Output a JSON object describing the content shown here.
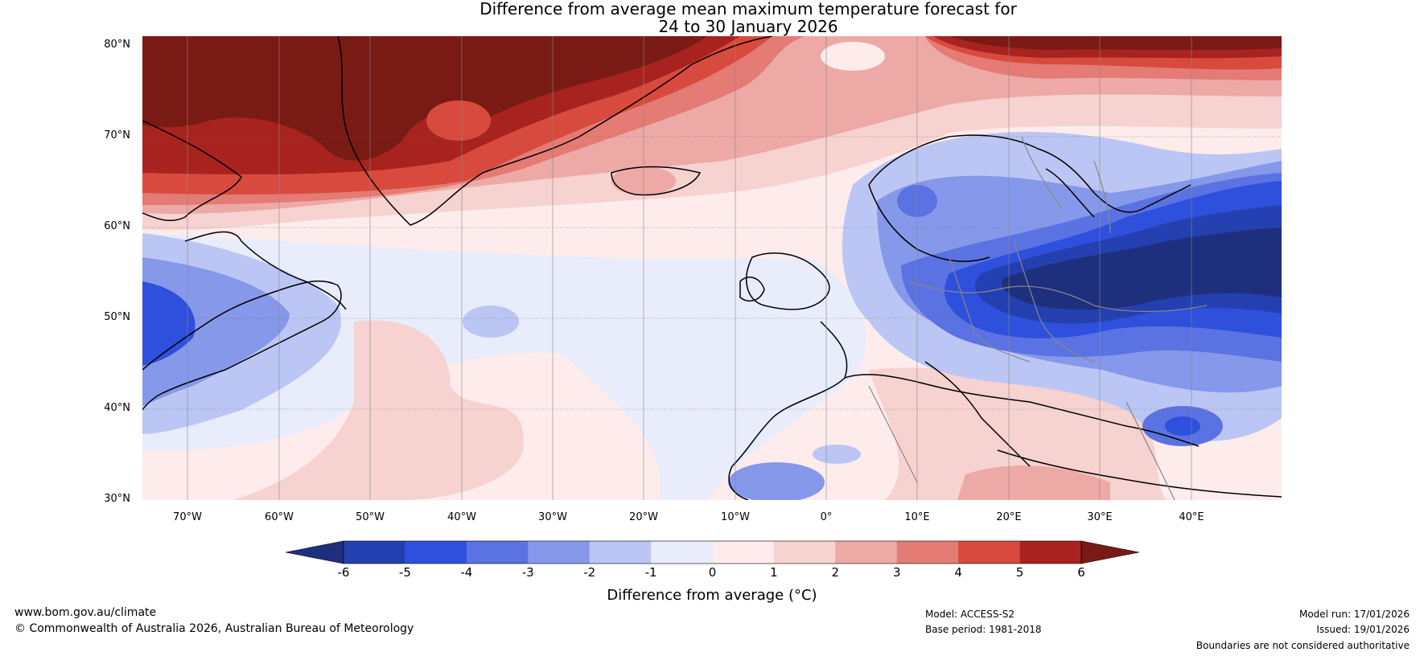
{
  "title": {
    "line1": "Difference from average mean maximum temperature forecast for",
    "line2": "24 to 30 January 2026"
  },
  "map": {
    "lat_labels": [
      "80°N",
      "70°N",
      "60°N",
      "50°N",
      "40°N",
      "30°N"
    ],
    "lon_labels": [
      "70°W",
      "60°W",
      "50°W",
      "40°W",
      "30°W",
      "20°W",
      "10°W",
      "0°",
      "10°E",
      "20°E",
      "30°E",
      "40°E"
    ],
    "lat_range": [
      30,
      81
    ],
    "lon_range": [
      -75,
      50
    ]
  },
  "colorbar": {
    "ticks": [
      "-6",
      "-5",
      "-4",
      "-3",
      "-2",
      "-1",
      "0",
      "1",
      "2",
      "3",
      "4",
      "5",
      "6"
    ],
    "colors": [
      "#1e2f7e",
      "#2440b0",
      "#2e50dd",
      "#5b72e2",
      "#8598ea",
      "#bcc6f4",
      "#e8ecfb",
      "#fdeceb",
      "#f6d2d0",
      "#eda9a6",
      "#e47b74",
      "#d84a3e",
      "#a8231f",
      "#7a1a15"
    ],
    "label": "Difference from average (°C)"
  },
  "footer": {
    "website": "www.bom.gov.au/climate",
    "copyright": "© Commonwealth of Australia 2026, Australian Bureau of Meteorology",
    "model": "Model: ACCESS-S2",
    "base_period": "Base period: 1981-2018",
    "model_run": "Model run: 17/01/2026",
    "issued": "Issued: 19/01/2026",
    "disclaimer": "Boundaries are not considered authoritative"
  }
}
